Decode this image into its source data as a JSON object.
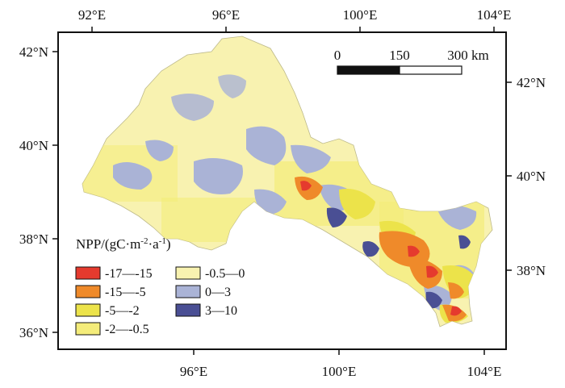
{
  "map": {
    "top_ticks": [
      "92°E",
      "96°E",
      "100°E",
      "104°E"
    ],
    "bottom_ticks": [
      "96°E",
      "100°E",
      "104°E"
    ],
    "left_ticks": [
      "42°N",
      "40°N",
      "38°N",
      "36°N"
    ],
    "right_ticks": [
      "42°N",
      "40°N",
      "38°N"
    ],
    "scale_bar": {
      "labels": [
        "0",
        "150",
        "300 km"
      ]
    },
    "legend": {
      "title_main": "NPP/(gC·m",
      "title_exp1": "-2",
      "title_mid": "·a",
      "title_exp2": "-1",
      "title_end": ")",
      "items": [
        {
          "label": "-17—-15",
          "color": "#e53a2e"
        },
        {
          "label": "-15—-5",
          "color": "#ef8a2a"
        },
        {
          "label": "-5—-2",
          "color": "#ece34a"
        },
        {
          "label": "-2—-0.5",
          "color": "#f4ec7a"
        },
        {
          "label": "-0.5—0",
          "color": "#f8f2b0"
        },
        {
          "label": "0—3",
          "color": "#aab3d6"
        },
        {
          "label": "3—10",
          "color": "#4a4f94"
        }
      ]
    }
  }
}
